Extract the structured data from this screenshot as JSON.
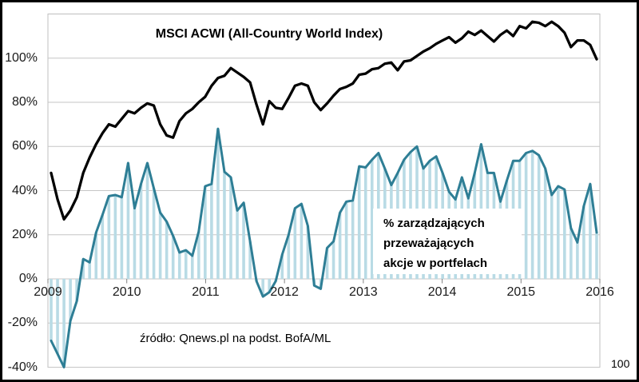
{
  "figure": {
    "title": "MSCI ACWI (All-Country World Index)",
    "annotation_lines": [
      "% zarządzających",
      "przeważających",
      "akcje w portfelach"
    ],
    "source": "źródło: Qnews.pl na podst. BofA/ML",
    "corner_label": "100"
  },
  "chart_data": {
    "type": "line",
    "title": "MSCI ACWI (All-Country World Index)",
    "xlabel": "",
    "ylabel": "",
    "ylim": [
      -40,
      120
    ],
    "grid": true,
    "legend_position": "in-chart text annotations",
    "y_ticks": [
      {
        "value": 100,
        "label": "100%"
      },
      {
        "value": 80,
        "label": "80%"
      },
      {
        "value": 60,
        "label": "60%"
      },
      {
        "value": 40,
        "label": "40%"
      },
      {
        "value": 20,
        "label": "20%"
      },
      {
        "value": 0,
        "label": "0%"
      },
      {
        "value": -20,
        "label": "-20%"
      },
      {
        "value": -40,
        "label": "-40%"
      }
    ],
    "x_tick_labels": [
      "2009",
      "2010",
      "2011",
      "2012",
      "2013",
      "2014",
      "2015",
      "2016"
    ],
    "x": [
      "2009-01",
      "2009-02",
      "2009-03",
      "2009-04",
      "2009-05",
      "2009-06",
      "2009-07",
      "2009-08",
      "2009-09",
      "2009-10",
      "2009-11",
      "2009-12",
      "2010-01",
      "2010-02",
      "2010-03",
      "2010-04",
      "2010-05",
      "2010-06",
      "2010-07",
      "2010-08",
      "2010-09",
      "2010-10",
      "2010-11",
      "2010-12",
      "2011-01",
      "2011-02",
      "2011-03",
      "2011-04",
      "2011-05",
      "2011-06",
      "2011-07",
      "2011-08",
      "2011-09",
      "2011-10",
      "2011-11",
      "2011-12",
      "2012-01",
      "2012-02",
      "2012-03",
      "2012-04",
      "2012-05",
      "2012-06",
      "2012-07",
      "2012-08",
      "2012-09",
      "2012-10",
      "2012-11",
      "2012-12",
      "2013-01",
      "2013-02",
      "2013-03",
      "2013-04",
      "2013-05",
      "2013-06",
      "2013-07",
      "2013-08",
      "2013-09",
      "2013-10",
      "2013-11",
      "2013-12",
      "2014-01",
      "2014-02",
      "2014-03",
      "2014-04",
      "2014-05",
      "2014-06",
      "2014-07",
      "2014-08",
      "2014-09",
      "2014-10",
      "2014-11",
      "2014-12",
      "2015-01",
      "2015-02",
      "2015-03",
      "2015-04",
      "2015-05",
      "2015-06",
      "2015-07",
      "2015-08",
      "2015-09",
      "2015-10",
      "2015-11",
      "2015-12",
      "2016-01",
      "2016-02"
    ],
    "series": [
      {
        "name": "MSCI ACWI (All-Country World Index)",
        "style": "line",
        "color": "#000000",
        "unit": "%",
        "values": [
          48,
          36,
          27,
          31,
          37,
          48,
          55,
          61,
          66,
          70,
          69,
          72.5,
          76,
          75,
          77.5,
          79.5,
          78.5,
          70,
          65,
          64,
          71.5,
          75,
          77,
          80,
          82.5,
          87.5,
          91,
          92,
          95.5,
          93.5,
          91.5,
          89,
          79,
          70,
          80.5,
          77.5,
          77,
          82,
          87.5,
          88.5,
          87.5,
          80,
          76.5,
          79.5,
          83,
          86,
          87,
          88.5,
          92.5,
          93,
          95,
          95.5,
          97.5,
          98,
          94.5,
          98.5,
          99,
          101,
          103,
          104.5,
          106.5,
          108,
          109.5,
          107,
          109,
          112,
          110.5,
          112.5,
          110,
          107.5,
          110.5,
          112.5,
          110,
          114.5,
          113.5,
          116.5,
          116,
          114.5,
          116.5,
          114.5,
          111.5,
          105,
          108,
          108,
          106,
          99.5
        ]
      },
      {
        "name": "% zarządzających przeważających akcje w portfelach",
        "style": "line-with-bars",
        "color": "#2e7e95",
        "bar_color": "#b9dbe5",
        "unit": "%",
        "values": [
          -28,
          -34,
          -40,
          -19,
          -10,
          9,
          7.5,
          21,
          29,
          37.5,
          38,
          37,
          52.5,
          32,
          43,
          52.5,
          41,
          30,
          26,
          19.5,
          12,
          13,
          10.5,
          21.5,
          42,
          43,
          68,
          48.5,
          46,
          31,
          34.5,
          17,
          -1,
          -8,
          -6,
          -1,
          11,
          20,
          32,
          34,
          24,
          -3,
          -4.5,
          14,
          17,
          30,
          35,
          35.5,
          51,
          50.5,
          54,
          57,
          50,
          42.5,
          48,
          54,
          57.5,
          60,
          50,
          53.5,
          55.5,
          48,
          39.5,
          36,
          46,
          36.5,
          48,
          61,
          48,
          48,
          35,
          44.5,
          53.5,
          53.5,
          57,
          58,
          56,
          50,
          38,
          42,
          40.5,
          23,
          16.5,
          33,
          43,
          21
        ]
      }
    ],
    "colors": {
      "gridline": "#c6c6c6",
      "plot_border": "#bfbfbf",
      "tick": "#808080",
      "msci_line": "#000000",
      "managers_line": "#2e7e95",
      "managers_bar": "#b9dbe5"
    }
  }
}
